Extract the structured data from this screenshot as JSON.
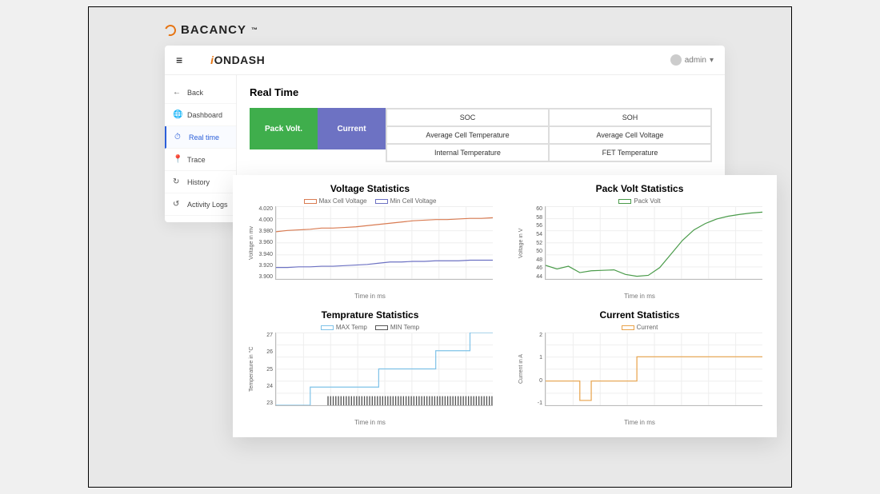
{
  "brand": {
    "name": "BACANCY",
    "symbol": "™"
  },
  "app": {
    "logo_prefix": "i",
    "logo_text": "ONDASH",
    "user_label": "admin",
    "hamburger": "≡"
  },
  "sidebar": {
    "items": [
      {
        "label": "Back",
        "icon": "←",
        "active": false
      },
      {
        "label": "Dashboard",
        "icon": "🌐",
        "active": false
      },
      {
        "label": "Real time",
        "icon": "⏱",
        "active": true
      },
      {
        "label": "Trace",
        "icon": "📍",
        "active": false
      },
      {
        "label": "History",
        "icon": "↻",
        "active": false
      },
      {
        "label": "Activity Logs",
        "icon": "↺",
        "active": false
      }
    ]
  },
  "page": {
    "title": "Real Time",
    "buttons": [
      {
        "label": "Pack Volt.",
        "color": "#3fae4c"
      },
      {
        "label": "Current",
        "color": "#6d72c3"
      }
    ],
    "metrics": [
      "SOC",
      "SOH",
      "Average Cell Temperature",
      "Average Cell Voltage",
      "Internal Temperature",
      "FET Temperature"
    ]
  },
  "charts": {
    "voltage": {
      "title": "Voltage Statistics",
      "ylabel": "Voltage in mv",
      "xlabel": "Time in ms",
      "ylim": [
        3.9,
        4.02
      ],
      "yticks": [
        "4.020",
        "4.000",
        "3.980",
        "3.960",
        "3.940",
        "3.920",
        "3.900"
      ],
      "series": [
        {
          "name": "Max Cell Voltage",
          "color": "#d97b52",
          "data": [
            3.978,
            3.98,
            3.981,
            3.982,
            3.984,
            3.984,
            3.985,
            3.986,
            3.988,
            3.99,
            3.992,
            3.994,
            3.996,
            3.997,
            3.998,
            3.998,
            3.999,
            4.0,
            4.0,
            4.001
          ]
        },
        {
          "name": "Min Cell Voltage",
          "color": "#6d72c3",
          "data": [
            3.919,
            3.919,
            3.92,
            3.92,
            3.921,
            3.921,
            3.922,
            3.923,
            3.924,
            3.926,
            3.928,
            3.928,
            3.929,
            3.929,
            3.93,
            3.93,
            3.93,
            3.931,
            3.931,
            3.931
          ]
        }
      ]
    },
    "packvolt": {
      "title": "Pack Volt Statistics",
      "ylabel": "Voltage in V",
      "xlabel": "Time in ms",
      "ylim": [
        44,
        60
      ],
      "yticks": [
        "60",
        "58",
        "56",
        "54",
        "52",
        "50",
        "48",
        "46",
        "44"
      ],
      "series": [
        {
          "name": "Pack Volt",
          "color": "#4a9b4a",
          "data": [
            47.0,
            46.2,
            46.8,
            45.4,
            45.8,
            45.9,
            46.0,
            45.0,
            44.6,
            44.8,
            46.5,
            49.5,
            52.5,
            54.8,
            56.2,
            57.2,
            57.8,
            58.2,
            58.5,
            58.7
          ]
        }
      ]
    },
    "temperature": {
      "title": "Temprature Statistics",
      "ylabel": "Temperature in °C",
      "xlabel": "Time in ms",
      "ylim": [
        23,
        27
      ],
      "yticks": [
        "27",
        "26",
        "25",
        "24",
        "23"
      ],
      "series": [
        {
          "name": "MAX Temp",
          "color": "#7fc2e8",
          "step": true,
          "data": [
            23,
            23,
            23,
            24,
            24,
            24,
            24,
            24,
            24,
            25,
            25,
            25,
            25,
            25,
            26,
            26,
            26,
            27,
            27,
            27
          ]
        },
        {
          "name": "MIN Temp",
          "color": "#555555",
          "step": true,
          "noisy": true,
          "data": [
            23,
            23,
            23,
            23.5,
            23,
            23.5,
            23,
            23.5,
            23,
            23.5,
            23,
            23.5,
            23,
            23.5,
            23,
            23.5,
            23,
            23.5,
            23,
            23.5
          ]
        }
      ],
      "noise_color": "#555555"
    },
    "current": {
      "title": "Current Statistics",
      "ylabel": "Current in A",
      "xlabel": "Time in ms",
      "ylim": [
        -1,
        2
      ],
      "yticks": [
        "2",
        "1",
        "0",
        "-1"
      ],
      "series": [
        {
          "name": "Current",
          "color": "#e8a24a",
          "step": true,
          "data": [
            0,
            0,
            0,
            -0.8,
            0,
            0,
            0,
            0,
            1,
            1,
            1,
            1,
            1,
            1,
            1,
            1,
            1,
            1,
            1,
            1
          ]
        }
      ]
    }
  }
}
